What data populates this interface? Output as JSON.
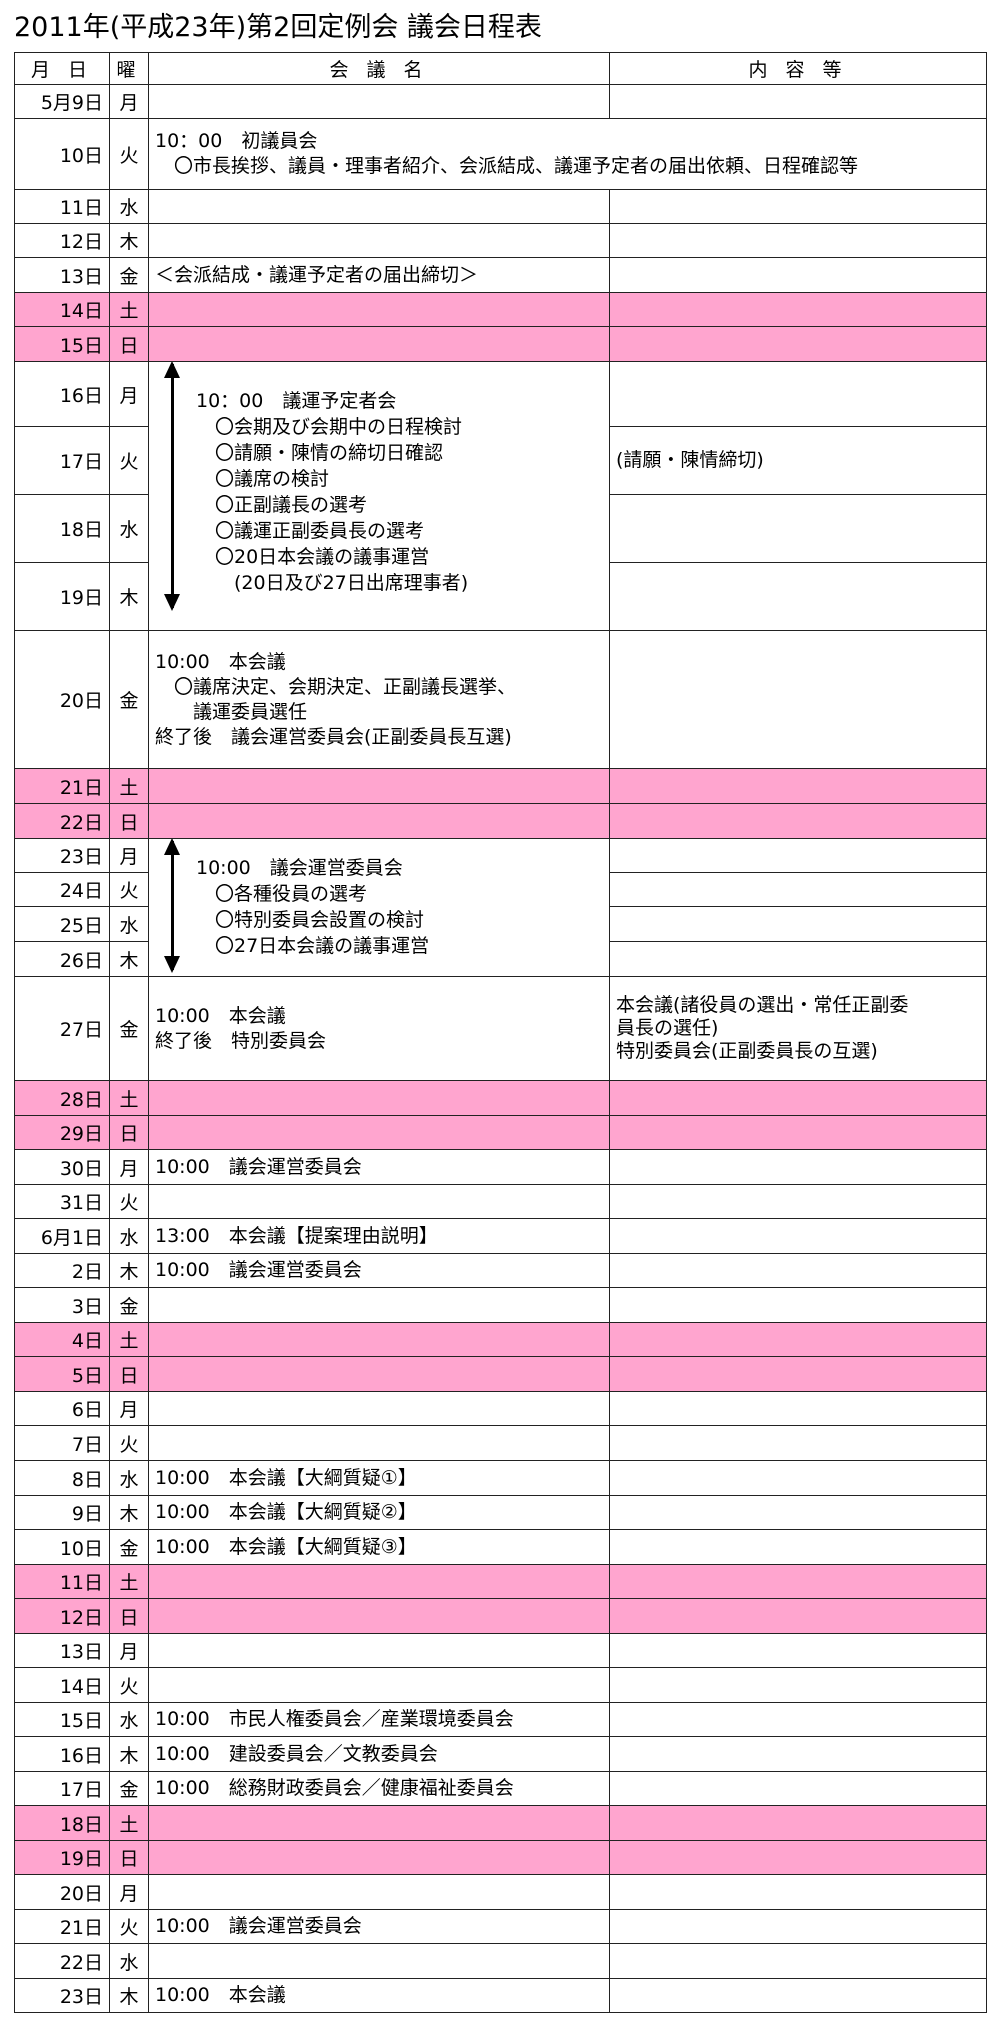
{
  "title": "2011年(平成23年)第2回定例会 議会日程表",
  "headers": {
    "date": "月 日",
    "dow": "曜",
    "meeting": "会 議 名",
    "notes": "内 容 等"
  },
  "rows": {
    "r0": {
      "date": "5月9日",
      "dow": "月"
    },
    "r1": {
      "date": "10日",
      "dow": "火",
      "meeting": [
        "10：00　初議員会",
        "　〇市長挨拶、議員・理事者紹介、会派結成、議運予定者の届出依頼、日程確認等"
      ]
    },
    "r2": {
      "date": "11日",
      "dow": "水"
    },
    "r3": {
      "date": "12日",
      "dow": "木"
    },
    "r4": {
      "date": "13日",
      "dow": "金",
      "meeting": [
        "＜会派結成・議運予定者の届出締切＞"
      ]
    },
    "r5": {
      "date": "14日",
      "dow": "土"
    },
    "r6": {
      "date": "15日",
      "dow": "日"
    },
    "r7": {
      "date": "16日",
      "dow": "月"
    },
    "r8": {
      "date": "17日",
      "dow": "火",
      "notes": [
        "(請願・陳情締切)"
      ]
    },
    "r9": {
      "date": "18日",
      "dow": "水"
    },
    "r10": {
      "date": "19日",
      "dow": "木"
    },
    "r11": {
      "date": "20日",
      "dow": "金",
      "meeting": [
        "10:00　本会議",
        "　〇議席決定、会期決定、正副議長選挙、",
        "　　議運委員選任",
        "終了後　議会運営委員会(正副委員長互選)"
      ]
    },
    "r12": {
      "date": "21日",
      "dow": "土"
    },
    "r13": {
      "date": "22日",
      "dow": "日"
    },
    "r14": {
      "date": "23日",
      "dow": "月"
    },
    "r15": {
      "date": "24日",
      "dow": "火"
    },
    "r16": {
      "date": "25日",
      "dow": "水"
    },
    "r17": {
      "date": "26日",
      "dow": "木"
    },
    "r18": {
      "date": "27日",
      "dow": "金",
      "meeting": [
        "10:00　本会議",
        "終了後　特別委員会"
      ],
      "notes": [
        "本会議(諸役員の選出・常任正副委",
        "員長の選任)",
        "特別委員会(正副委員長の互選)"
      ]
    },
    "r19": {
      "date": "28日",
      "dow": "土"
    },
    "r20": {
      "date": "29日",
      "dow": "日"
    },
    "r21": {
      "date": "30日",
      "dow": "月",
      "meeting": [
        "10:00　議会運営委員会"
      ]
    },
    "r22": {
      "date": "31日",
      "dow": "火"
    },
    "r23": {
      "date": "6月1日",
      "dow": "水",
      "meeting": [
        "13:00　本会議【提案理由説明】"
      ]
    },
    "r24": {
      "date": "2日",
      "dow": "木",
      "meeting": [
        "10:00　議会運営委員会"
      ]
    },
    "r25": {
      "date": "3日",
      "dow": "金"
    },
    "r26": {
      "date": "4日",
      "dow": "土"
    },
    "r27": {
      "date": "5日",
      "dow": "日"
    },
    "r28": {
      "date": "6日",
      "dow": "月"
    },
    "r29": {
      "date": "7日",
      "dow": "火"
    },
    "r30": {
      "date": "8日",
      "dow": "水",
      "meeting": [
        "10:00　本会議【大綱質疑①】"
      ]
    },
    "r31": {
      "date": "9日",
      "dow": "木",
      "meeting": [
        "10:00　本会議【大綱質疑②】"
      ]
    },
    "r32": {
      "date": "10日",
      "dow": "金",
      "meeting": [
        "10:00　本会議【大綱質疑③】"
      ]
    },
    "r33": {
      "date": "11日",
      "dow": "土"
    },
    "r34": {
      "date": "12日",
      "dow": "日"
    },
    "r35": {
      "date": "13日",
      "dow": "月"
    },
    "r36": {
      "date": "14日",
      "dow": "火"
    },
    "r37": {
      "date": "15日",
      "dow": "水",
      "meeting": [
        "10:00　市民人権委員会／産業環境委員会"
      ]
    },
    "r38": {
      "date": "16日",
      "dow": "木",
      "meeting": [
        "10:00　建設委員会／文教委員会"
      ]
    },
    "r39": {
      "date": "17日",
      "dow": "金",
      "meeting": [
        "10:00　総務財政委員会／健康福祉委員会"
      ]
    },
    "r40": {
      "date": "18日",
      "dow": "土"
    },
    "r41": {
      "date": "19日",
      "dow": "日"
    },
    "r42": {
      "date": "20日",
      "dow": "月"
    },
    "r43": {
      "date": "21日",
      "dow": "火",
      "meeting": [
        "10:00　議会運営委員会"
      ]
    },
    "r44": {
      "date": "22日",
      "dow": "水"
    },
    "r45": {
      "date": "23日",
      "dow": "木",
      "meeting": [
        "10:00　本会議"
      ]
    }
  },
  "block_16_19": [
    "10：00　議運予定者会",
    "　〇会期及び会期中の日程検討",
    "　〇請願・陳情の締切日確認",
    "　〇議席の検討",
    "　〇正副議長の選考",
    "　〇議運正副委員長の選考",
    "　〇20日本会議の議事運営",
    "　　(20日及び27日出席理事者)"
  ],
  "block_23_26": [
    "10:00　議会運営委員会",
    "　〇各種役員の選考",
    "　〇特別委員会設置の検討",
    "　〇27日本会議の議事運営"
  ],
  "colors": {
    "weekend_fill": "#ffa5cf",
    "border": "#222222"
  }
}
